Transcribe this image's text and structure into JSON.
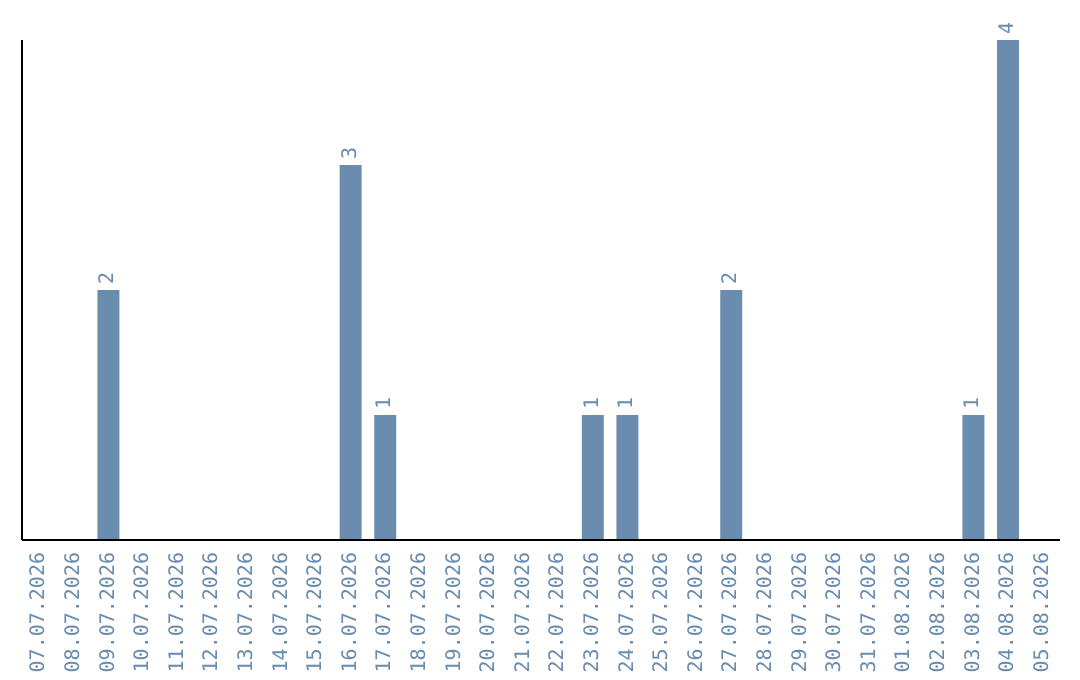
{
  "chart_data": {
    "type": "bar",
    "categories": [
      "07.07.2026",
      "08.07.2026",
      "09.07.2026",
      "10.07.2026",
      "11.07.2026",
      "12.07.2026",
      "13.07.2026",
      "14.07.2026",
      "15.07.2026",
      "16.07.2026",
      "17.07.2026",
      "18.07.2026",
      "19.07.2026",
      "20.07.2026",
      "21.07.2026",
      "22.07.2026",
      "23.07.2026",
      "24.07.2026",
      "25.07.2026",
      "26.07.2026",
      "27.07.2026",
      "28.07.2026",
      "29.07.2026",
      "30.07.2026",
      "31.07.2026",
      "01.08.2026",
      "02.08.2026",
      "03.08.2026",
      "04.08.2026",
      "05.08.2026"
    ],
    "values": [
      0,
      0,
      2,
      0,
      0,
      0,
      0,
      0,
      0,
      3,
      1,
      0,
      0,
      0,
      0,
      0,
      1,
      1,
      0,
      0,
      2,
      0,
      0,
      0,
      0,
      0,
      0,
      1,
      4,
      0
    ],
    "value_labels": [
      null,
      null,
      "2",
      null,
      null,
      null,
      null,
      null,
      null,
      "3",
      "1",
      null,
      null,
      null,
      null,
      null,
      "1",
      "1",
      null,
      null,
      "2",
      null,
      null,
      null,
      null,
      null,
      null,
      "1",
      "4",
      null
    ],
    "color": "#6a8caf",
    "grid": false,
    "legend": false
  }
}
